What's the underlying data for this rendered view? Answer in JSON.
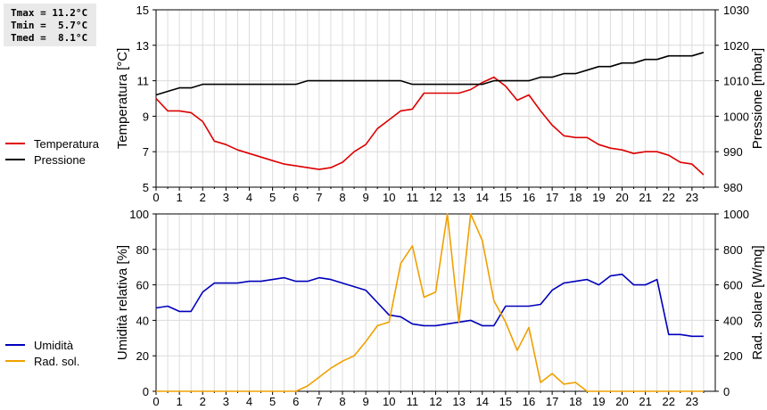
{
  "stats": {
    "tmax": "Tmax = 11.2°C",
    "tmin": "Tmin =  5.7°C",
    "tmed": "Tmed =  8.1°C"
  },
  "chart_data": [
    {
      "type": "line",
      "ylabel": "Temperatura [°C]",
      "y2label": "Pressione [mbar]",
      "xlim": [
        0,
        24
      ],
      "ylim": [
        5,
        15
      ],
      "y2lim": [
        980,
        1030
      ],
      "xticks": [
        "0",
        "1",
        "2",
        "3",
        "4",
        "5",
        "6",
        "7",
        "8",
        "9",
        "10",
        "11",
        "12",
        "13",
        "14",
        "15",
        "16",
        "17",
        "18",
        "19",
        "20",
        "21",
        "22",
        "23"
      ],
      "yticks": [
        "5",
        "7",
        "9",
        "11",
        "13",
        "15"
      ],
      "y2ticks": [
        "980",
        "990",
        "1000",
        "1010",
        "1020",
        "1030"
      ],
      "grid": true,
      "legend_position": "left",
      "series": [
        {
          "name": "Temperatura",
          "color": "#dd0000",
          "axis": "left",
          "x": [
            0,
            0.5,
            1,
            1.5,
            2,
            2.5,
            3,
            3.5,
            4,
            4.5,
            5,
            5.5,
            6,
            6.5,
            7,
            7.5,
            8,
            8.5,
            9,
            9.5,
            10,
            10.5,
            11,
            11.5,
            12,
            12.5,
            13,
            13.5,
            14,
            14.5,
            15,
            15.5,
            16,
            16.5,
            17,
            17.5,
            18,
            18.5,
            19,
            19.5,
            20,
            20.5,
            21,
            21.5,
            22,
            22.5,
            23,
            23.5
          ],
          "y": [
            10.0,
            9.3,
            9.3,
            9.2,
            8.7,
            7.6,
            7.4,
            7.1,
            6.9,
            6.7,
            6.5,
            6.3,
            6.2,
            6.1,
            6.0,
            6.1,
            6.4,
            7.0,
            7.4,
            8.3,
            8.8,
            9.3,
            9.4,
            10.3,
            10.3,
            10.3,
            10.3,
            10.5,
            10.9,
            11.2,
            10.7,
            9.9,
            10.2,
            9.3,
            8.5,
            7.9,
            7.8,
            7.8,
            7.4,
            7.2,
            7.1,
            6.9,
            7.0,
            7.0,
            6.8,
            6.4,
            6.3,
            5.7
          ]
        },
        {
          "name": "Pressione",
          "color": "#000000",
          "axis": "right",
          "x": [
            0,
            0.5,
            1,
            1.5,
            2,
            2.5,
            3,
            3.5,
            4,
            4.5,
            5,
            5.5,
            6,
            6.5,
            7,
            7.5,
            8,
            8.5,
            9,
            9.5,
            10,
            10.5,
            11,
            11.5,
            12,
            12.5,
            13,
            13.5,
            14,
            14.5,
            15,
            15.5,
            16,
            16.5,
            17,
            17.5,
            18,
            18.5,
            19,
            19.5,
            20,
            20.5,
            21,
            21.5,
            22,
            22.5,
            23,
            23.5
          ],
          "y": [
            1006,
            1007,
            1008,
            1008,
            1009,
            1009,
            1009,
            1009,
            1009,
            1009,
            1009,
            1009,
            1009,
            1010,
            1010,
            1010,
            1010,
            1010,
            1010,
            1010,
            1010,
            1010,
            1009,
            1009,
            1009,
            1009,
            1009,
            1009,
            1009,
            1010,
            1010,
            1010,
            1010,
            1011,
            1011,
            1012,
            1012,
            1013,
            1014,
            1014,
            1015,
            1015,
            1016,
            1016,
            1017,
            1017,
            1017,
            1018
          ]
        }
      ]
    },
    {
      "type": "line",
      "ylabel": "Umidità relativa [%]",
      "y2label": "Rad. solare [W/mq]",
      "xlim": [
        0,
        24
      ],
      "ylim": [
        0,
        100
      ],
      "y2lim": [
        0,
        1000
      ],
      "xticks": [
        "0",
        "1",
        "2",
        "3",
        "4",
        "5",
        "6",
        "7",
        "8",
        "9",
        "10",
        "11",
        "12",
        "13",
        "14",
        "15",
        "16",
        "17",
        "18",
        "19",
        "20",
        "21",
        "22",
        "23"
      ],
      "yticks": [
        "0",
        "20",
        "40",
        "60",
        "80",
        "100"
      ],
      "y2ticks": [
        "0",
        "200",
        "400",
        "600",
        "800",
        "1000"
      ],
      "grid": true,
      "legend_position": "left",
      "series": [
        {
          "name": "Umidità",
          "color": "#0000bb",
          "axis": "left",
          "x": [
            0,
            0.5,
            1,
            1.5,
            2,
            2.5,
            3,
            3.5,
            4,
            4.5,
            5,
            5.5,
            6,
            6.5,
            7,
            7.5,
            8,
            8.5,
            9,
            9.5,
            10,
            10.5,
            11,
            11.5,
            12,
            12.5,
            13,
            13.5,
            14,
            14.5,
            15,
            15.5,
            16,
            16.5,
            17,
            17.5,
            18,
            18.5,
            19,
            19.5,
            20,
            20.5,
            21,
            21.5,
            22,
            22.5,
            23,
            23.5
          ],
          "y": [
            47,
            48,
            45,
            45,
            56,
            61,
            61,
            61,
            62,
            62,
            63,
            64,
            62,
            62,
            64,
            63,
            61,
            59,
            57,
            50,
            43,
            42,
            38,
            37,
            37,
            38,
            39,
            40,
            37,
            37,
            48,
            48,
            48,
            49,
            57,
            61,
            62,
            63,
            60,
            65,
            66,
            60,
            60,
            63,
            32,
            32,
            31,
            31
          ]
        },
        {
          "name": "Rad. sol.",
          "color": "#f0a000",
          "axis": "right",
          "x": [
            0,
            0.5,
            1,
            1.5,
            2,
            2.5,
            3,
            3.5,
            4,
            4.5,
            5,
            5.5,
            6,
            6.5,
            7,
            7.5,
            8,
            8.5,
            9,
            9.5,
            10,
            10.5,
            11,
            11.5,
            12,
            12.5,
            13,
            13.5,
            14,
            14.5,
            15,
            15.5,
            16,
            16.5,
            17,
            17.5,
            18,
            18.5,
            19,
            19.5,
            20,
            20.5,
            21,
            21.5,
            22,
            22.5,
            23,
            23.5
          ],
          "y": [
            0,
            0,
            0,
            0,
            0,
            0,
            0,
            0,
            0,
            0,
            0,
            0,
            0,
            30,
            80,
            130,
            170,
            200,
            280,
            370,
            390,
            720,
            820,
            530,
            560,
            1000,
            390,
            1000,
            850,
            510,
            390,
            230,
            360,
            50,
            100,
            40,
            50,
            0,
            0,
            0,
            0,
            0,
            0,
            0,
            0,
            0,
            0,
            0
          ]
        }
      ]
    }
  ]
}
